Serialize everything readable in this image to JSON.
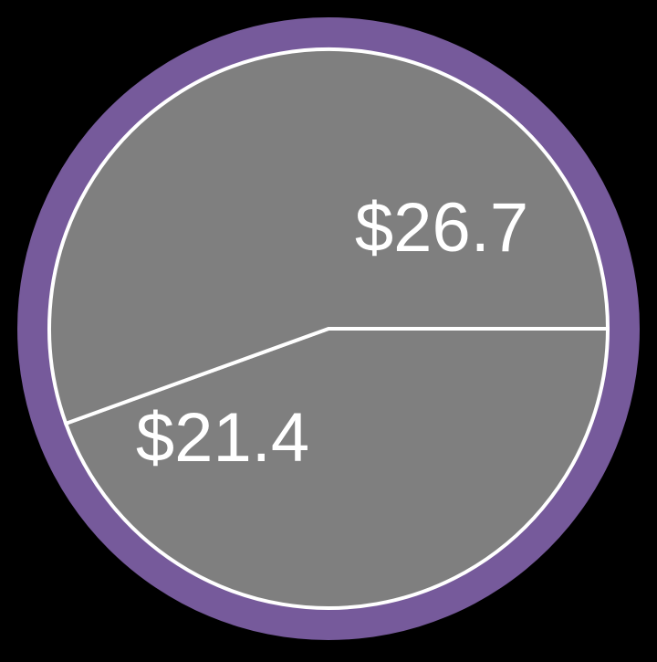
{
  "chart_data": {
    "type": "pie",
    "categories": [
      "",
      ""
    ],
    "values": [
      21.4,
      26.7
    ],
    "data_labels": [
      "$21.4",
      "$26.7"
    ],
    "title": "",
    "legend": "none",
    "grid": false,
    "colors": {
      "background": "#000000",
      "slice_fill": "#7f7f7f",
      "slice_stroke": "#ffffff",
      "ring": "#765a9b"
    }
  }
}
